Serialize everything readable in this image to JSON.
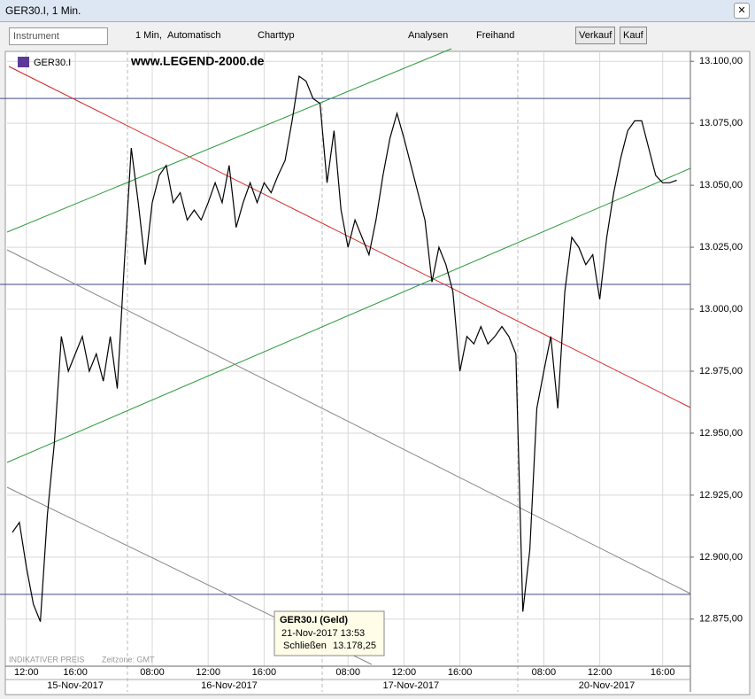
{
  "window": {
    "title": "GER30.I, 1 Min."
  },
  "toolbar": {
    "instrument": "Instrument",
    "interval": "1 Min,",
    "scale": "Automatisch",
    "chart_type": "Charttyp",
    "analyses": "Analysen",
    "freehand": "Freihand",
    "sell": "Verkauf",
    "buy": "Kauf"
  },
  "chart_data": {
    "type": "line",
    "symbol": "GER30.I",
    "watermark": "www.LEGEND-2000.de",
    "color": "#000000",
    "categories": [
      null,
      null,
      "12:00",
      null,
      null,
      null,
      null,
      null,
      null,
      "16:00",
      null,
      null,
      null,
      null,
      null,
      null,
      null,
      null,
      null,
      null,
      "08:00",
      null,
      null,
      null,
      null,
      null,
      null,
      null,
      "12:00",
      null,
      null,
      null,
      null,
      null,
      null,
      null,
      "16:00",
      null,
      null,
      null,
      null,
      null,
      null,
      null,
      null,
      null,
      null,
      null,
      "08:00",
      null,
      null,
      null,
      null,
      null,
      null,
      null,
      "12:00",
      null,
      null,
      null,
      null,
      null,
      null,
      null,
      "16:00",
      null,
      null,
      null,
      null,
      null,
      null,
      null,
      null,
      null,
      null,
      null,
      "08:00",
      null,
      null,
      null,
      null,
      null,
      null,
      null,
      "12:00",
      null,
      null,
      null,
      null,
      null,
      null,
      null,
      null,
      "16:00",
      null,
      null
    ],
    "dates": [
      null,
      null,
      null,
      null,
      null,
      null,
      null,
      null,
      null,
      "15-Nov-2017",
      null,
      null,
      null,
      null,
      null,
      null,
      null,
      null,
      null,
      null,
      null,
      null,
      null,
      null,
      null,
      null,
      null,
      null,
      null,
      null,
      null,
      "16-Nov-2017",
      null,
      null,
      null,
      null,
      null,
      null,
      null,
      null,
      null,
      null,
      null,
      null,
      null,
      null,
      null,
      null,
      null,
      null,
      null,
      null,
      null,
      null,
      null,
      null,
      null,
      "17-Nov-2017",
      null,
      null,
      null,
      null,
      null,
      null,
      null,
      null,
      null,
      null,
      null,
      null,
      null,
      null,
      null,
      null,
      null,
      null,
      null,
      null,
      null,
      null,
      null,
      null,
      null,
      null,
      null,
      "20-Nov-2017",
      null,
      null,
      null,
      null,
      null,
      null,
      null,
      null,
      null,
      null
    ],
    "values": [
      12910,
      12914,
      12896,
      12881,
      12874,
      12917,
      12946,
      12989,
      12975,
      12982,
      12989,
      12975,
      12982,
      12971,
      12989,
      12968,
      13018,
      13065,
      13043,
      13018,
      13043,
      13054,
      13058,
      13043,
      13047,
      13036,
      13040,
      13036,
      13043,
      13051,
      13043,
      13058,
      13033,
      13043,
      13051,
      13043,
      13051,
      13047,
      13054,
      13060,
      13076,
      13094,
      13092,
      13085,
      13083,
      13051,
      13072,
      13040,
      13025,
      13036,
      13029,
      13022,
      13036,
      13054,
      13069,
      13079,
      13069,
      13058,
      13047,
      13036,
      13011,
      13025,
      13018,
      13007,
      12975,
      12989,
      12986,
      12993,
      12986,
      12989,
      12993,
      12989,
      12982,
      12878,
      12903,
      12960,
      12975,
      12989,
      12960,
      13007,
      13029,
      13025,
      13018,
      13022,
      13004,
      13029,
      13047,
      13061,
      13072,
      13076,
      13076,
      13065,
      13054,
      13051,
      13051,
      13052
    ],
    "ylim": [
      12856,
      13104
    ],
    "yticks": [
      {
        "value": 12875,
        "label": "12.875,00"
      },
      {
        "value": 12900,
        "label": "12.900,00"
      },
      {
        "value": 12925,
        "label": "12.925,00"
      },
      {
        "value": 12950,
        "label": "12.950,00"
      },
      {
        "value": 12975,
        "label": "12.975,00"
      },
      {
        "value": 13000,
        "label": "13.000,00"
      },
      {
        "value": 13025,
        "label": "13.025,00"
      },
      {
        "value": 13050,
        "label": "13.050,00"
      },
      {
        "value": 13075,
        "label": "13.075,00"
      },
      {
        "value": 13100,
        "label": "13.100,00"
      }
    ],
    "hlines": [
      13085,
      13010,
      12885
    ],
    "hline_color": "#3a4a8a",
    "grid": true,
    "tooltip": {
      "title": "GER30.I (Geld)",
      "time": "21-Nov-2017 13:53",
      "label": "Schließen",
      "value": "13.178,25"
    },
    "footer": {
      "price_note": "INDIKATIVER PREIS",
      "timezone": "Zeitzone: GMT"
    }
  }
}
